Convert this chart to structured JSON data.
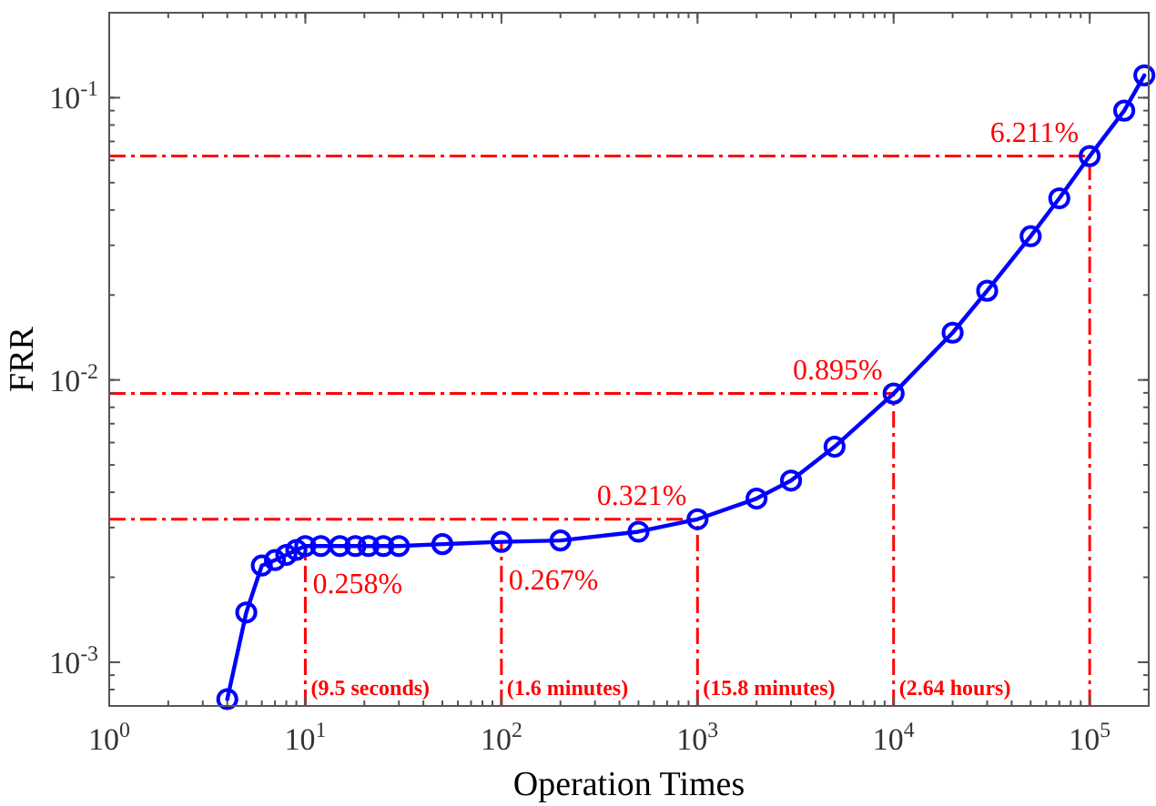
{
  "chart_data": {
    "type": "line",
    "xlabel": "Operation Times",
    "ylabel": "FRR",
    "log": "xy",
    "grid": false,
    "marker": "circle",
    "line_style": "solid",
    "xlim": [
      1,
      200000
    ],
    "ylim": [
      0.0007,
      0.2
    ],
    "xticks": [
      {
        "value": 1,
        "label": "10$^{0}$"
      },
      {
        "value": 10,
        "label": "10$^{1}$"
      },
      {
        "value": 100,
        "label": "10$^{2}$"
      },
      {
        "value": 1000,
        "label": "10$^{3}$"
      },
      {
        "value": 10000,
        "label": "10$^{4}$"
      },
      {
        "value": 100000,
        "label": "10$^{5}$"
      }
    ],
    "yticks": [
      {
        "value": 0.001,
        "label": "10$^{-3}$"
      },
      {
        "value": 0.01,
        "label": "10$^{-2}$"
      },
      {
        "value": 0.1,
        "label": "10$^{-1}$"
      }
    ],
    "series": [
      {
        "color": "#0000ff",
        "x": [
          4,
          5,
          6,
          7,
          8,
          9,
          10,
          12,
          15,
          18,
          21,
          25,
          30,
          50,
          100,
          200,
          500,
          1000,
          2000,
          3000,
          5000,
          10000,
          20000,
          30000,
          50000,
          70000,
          100000,
          150000,
          190000
        ],
        "values": [
          0.00074,
          0.0015,
          0.0022,
          0.0023,
          0.0024,
          0.0025,
          0.00258,
          0.00258,
          0.00258,
          0.00258,
          0.00258,
          0.00258,
          0.00258,
          0.00262,
          0.00267,
          0.0027,
          0.0029,
          0.00321,
          0.0038,
          0.0044,
          0.0058,
          0.00895,
          0.0147,
          0.0207,
          0.0323,
          0.044,
          0.06211,
          0.09,
          0.12
        ]
      }
    ],
    "ref_lines": [
      {
        "axis": "y",
        "value": 0.00321,
        "color": "#ff0000",
        "line_style": "dashed"
      },
      {
        "axis": "y",
        "value": 0.00895,
        "color": "#ff0000",
        "line_style": "dashed"
      },
      {
        "axis": "y",
        "value": 0.06211,
        "color": "#ff0000",
        "line_style": "dashed"
      },
      {
        "axis": "x",
        "value": 10,
        "label": "(9.5 seconds)",
        "color": "#ff0000",
        "line_style": "dashed"
      },
      {
        "axis": "x",
        "value": 100,
        "label": "(1.6 minutes)",
        "color": "#ff0000",
        "line_style": "dashed"
      },
      {
        "axis": "x",
        "value": 1000,
        "label": "(15.8 minutes)",
        "color": "#ff0000",
        "line_style": "dashed"
      },
      {
        "axis": "x",
        "value": 10000,
        "label": "(2.64 hours)",
        "color": "#ff0000",
        "line_style": "dashed"
      },
      {
        "axis": "x",
        "value": 100000,
        "color": "#ff0000",
        "line_style": "dashed"
      }
    ],
    "annotations": [
      {
        "text": "0.258%",
        "x": 10,
        "y": 0.00258
      },
      {
        "text": "0.267%",
        "x": 100,
        "y": 0.00267
      },
      {
        "text": "0.321%",
        "x": 1000,
        "y": 0.00321
      },
      {
        "text": "0.895%",
        "x": 10000,
        "y": 0.00895
      },
      {
        "text": "6.211%",
        "x": 100000,
        "y": 0.06211
      }
    ]
  }
}
